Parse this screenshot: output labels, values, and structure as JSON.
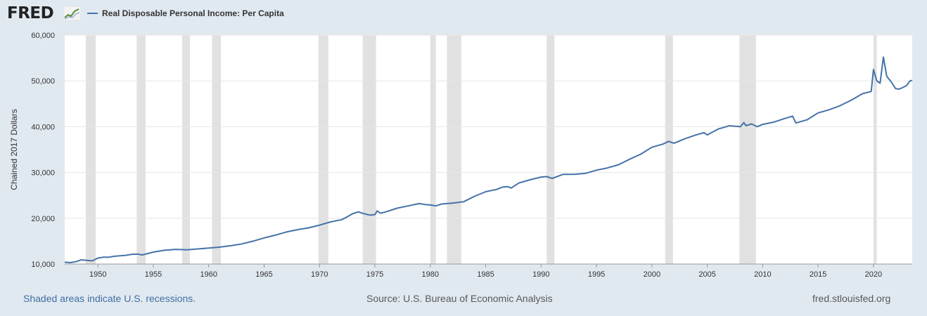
{
  "header": {
    "logo_text": "FRED",
    "logo_icon": "chart-line-icon"
  },
  "footer": {
    "recession_note": "Shaded areas indicate U.S. recessions.",
    "source": "Source: U.S. Bureau of Economic Analysis",
    "site": "fred.stlouisfed.org"
  },
  "colors": {
    "line": "#4572a7",
    "recession": "#e1e1e1",
    "plot_bg": "#ffffff",
    "page_bg": "#e1e9f0"
  },
  "chart_data": {
    "type": "line",
    "title": "",
    "xlabel": "",
    "ylabel": "Chained 2017 Dollars",
    "xlim": [
      1947.0,
      2023.5
    ],
    "ylim": [
      10000,
      60000
    ],
    "x_ticks": [
      1950,
      1955,
      1960,
      1965,
      1970,
      1975,
      1980,
      1985,
      1990,
      1995,
      2000,
      2005,
      2010,
      2015,
      2020
    ],
    "y_ticks": [
      {
        "value": 10000,
        "label": "10,000"
      },
      {
        "value": 20000,
        "label": "20,000"
      },
      {
        "value": 30000,
        "label": "30,000"
      },
      {
        "value": 40000,
        "label": "40,000"
      },
      {
        "value": 50000,
        "label": "50,000"
      },
      {
        "value": 60000,
        "label": "60,000"
      }
    ],
    "grid": "horizontal",
    "legend": "top-left",
    "recessions": [
      [
        1948.9,
        1949.8
      ],
      [
        1953.5,
        1954.3
      ],
      [
        1957.6,
        1958.3
      ],
      [
        1960.3,
        1961.1
      ],
      [
        1969.9,
        1970.8
      ],
      [
        1973.9,
        1975.1
      ],
      [
        1980.0,
        1980.5
      ],
      [
        1981.5,
        1982.8
      ],
      [
        1990.5,
        1991.2
      ],
      [
        2001.2,
        2001.9
      ],
      [
        2007.9,
        2009.4
      ],
      [
        2020.0,
        2020.3
      ]
    ],
    "series": [
      {
        "name": "Real Disposable Personal Income: Per Capita",
        "x": [
          1947.0,
          1947.5,
          1948.0,
          1948.5,
          1949.0,
          1949.5,
          1950.0,
          1950.5,
          1951.0,
          1951.5,
          1952.0,
          1952.5,
          1953.0,
          1953.5,
          1954.0,
          1955.0,
          1956.0,
          1957.0,
          1958.0,
          1959.0,
          1960.0,
          1961.0,
          1962.0,
          1963.0,
          1964.0,
          1965.0,
          1966.0,
          1967.0,
          1968.0,
          1969.0,
          1970.0,
          1971.0,
          1972.0,
          1972.5,
          1973.0,
          1973.5,
          1974.0,
          1974.5,
          1975.0,
          1975.2,
          1975.5,
          1976.0,
          1977.0,
          1978.0,
          1979.0,
          1979.5,
          1980.0,
          1980.5,
          1981.0,
          1981.5,
          1982.0,
          1983.0,
          1984.0,
          1985.0,
          1986.0,
          1986.5,
          1987.0,
          1987.3,
          1988.0,
          1989.0,
          1990.0,
          1990.5,
          1991.0,
          1992.0,
          1993.0,
          1994.0,
          1995.0,
          1996.0,
          1997.0,
          1998.0,
          1999.0,
          2000.0,
          2001.0,
          2001.5,
          2002.0,
          2003.0,
          2004.0,
          2004.7,
          2005.0,
          2006.0,
          2007.0,
          2008.0,
          2008.3,
          2008.5,
          2009.0,
          2009.5,
          2010.0,
          2011.0,
          2012.0,
          2012.7,
          2013.0,
          2014.0,
          2015.0,
          2016.0,
          2017.0,
          2018.0,
          2019.0,
          2019.8,
          2020.0,
          2020.3,
          2020.6,
          2020.9,
          2021.2,
          2021.6,
          2022.0,
          2022.3,
          2022.6,
          2023.0,
          2023.3,
          2023.5
        ],
        "y": [
          10400,
          10300,
          10500,
          10900,
          10800,
          10700,
          11300,
          11500,
          11500,
          11700,
          11800,
          11900,
          12100,
          12200,
          12000,
          12600,
          13000,
          13200,
          13100,
          13300,
          13500,
          13700,
          14000,
          14400,
          15000,
          15700,
          16300,
          17000,
          17500,
          17900,
          18500,
          19200,
          19700,
          20300,
          21000,
          21400,
          21000,
          20700,
          20800,
          21600,
          21100,
          21400,
          22200,
          22700,
          23200,
          23000,
          22900,
          22700,
          23100,
          23200,
          23300,
          23600,
          24800,
          25800,
          26300,
          26800,
          26900,
          26600,
          27700,
          28400,
          29000,
          29100,
          28700,
          29600,
          29600,
          29800,
          30500,
          31000,
          31700,
          32900,
          34000,
          35500,
          36200,
          36800,
          36400,
          37400,
          38200,
          38700,
          38200,
          39500,
          40200,
          40000,
          40900,
          40200,
          40600,
          40000,
          40500,
          41000,
          41800,
          42300,
          40800,
          41500,
          43000,
          43700,
          44600,
          45800,
          47200,
          47700,
          52500,
          50000,
          49500,
          55200,
          51000,
          49800,
          48300,
          48200,
          48500,
          49000,
          50000,
          50100
        ]
      }
    ]
  }
}
